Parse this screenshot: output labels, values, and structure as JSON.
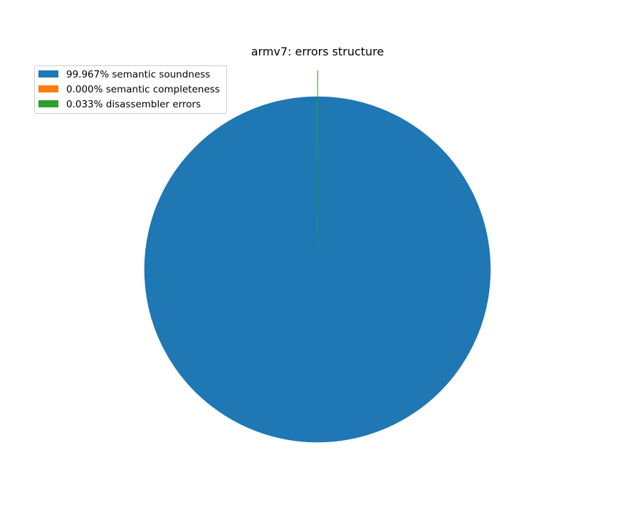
{
  "chart_data": {
    "type": "pie",
    "title": "armv7: errors structure",
    "slices": [
      {
        "label": "99.967% semantic soundness",
        "value": 99.967,
        "color": "#1f77b4",
        "explode": 0
      },
      {
        "label": "0.000% semantic completeness",
        "value": 0.0,
        "color": "#ff7f0e",
        "explode": 0
      },
      {
        "label": "0.033% disassembler errors",
        "value": 0.033,
        "color": "#2ca02c",
        "explode": 0.15
      }
    ],
    "start_angle_deg": 90,
    "direction": "counterclockwise",
    "legend_position": "upper-left"
  }
}
